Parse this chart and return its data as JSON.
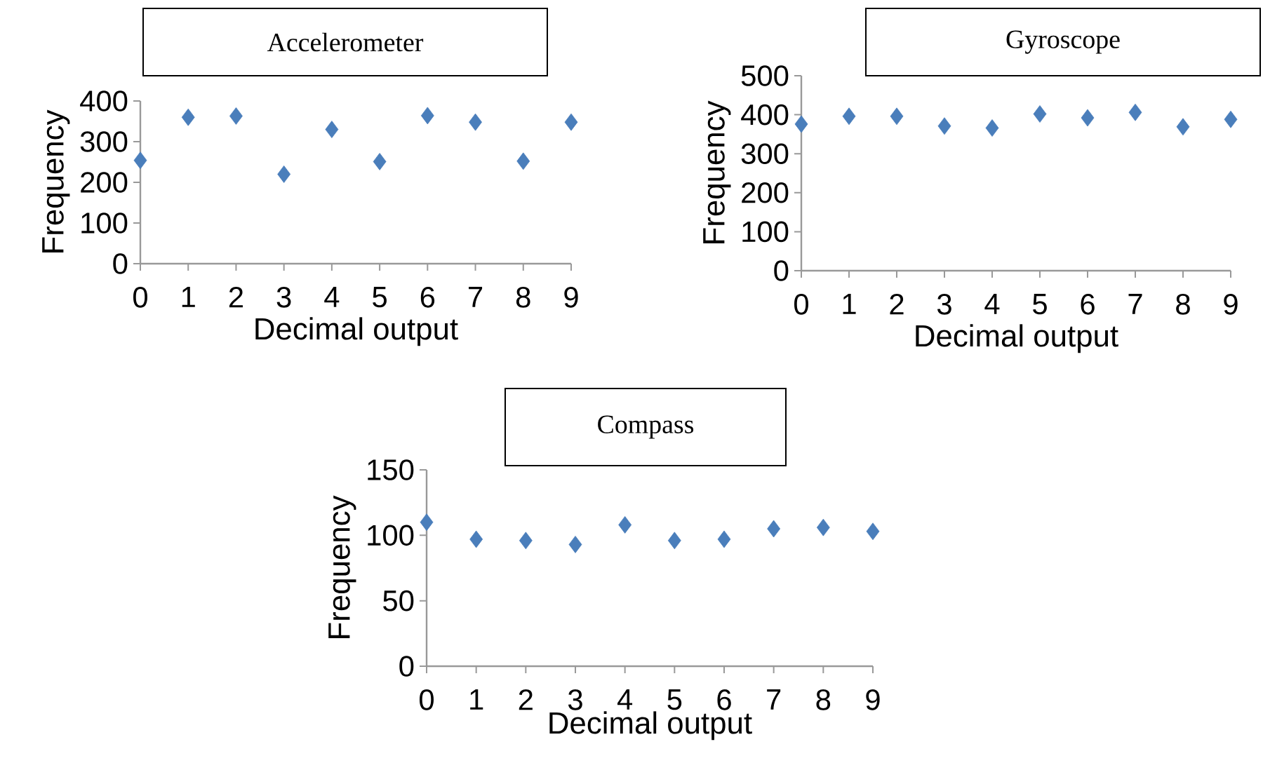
{
  "chart_data": [
    {
      "type": "scatter",
      "title": "Accelerometer",
      "xlabel": "Decimal output",
      "ylabel": "Frequency",
      "x": [
        0,
        1,
        2,
        3,
        4,
        5,
        6,
        7,
        8,
        9
      ],
      "values": [
        254,
        360,
        363,
        220,
        330,
        251,
        364,
        348,
        252,
        348
      ],
      "color": "#4a7ebb",
      "marker": "diamond",
      "xlim": [
        0,
        9
      ],
      "xticks": [
        0,
        1,
        2,
        3,
        4,
        5,
        6,
        7,
        8,
        9
      ],
      "ylim": [
        0,
        400
      ],
      "yticks": [
        0,
        100,
        200,
        300,
        400
      ]
    },
    {
      "type": "scatter",
      "title": "Gyroscope",
      "xlabel": "Decimal output",
      "ylabel": "Frequency",
      "x": [
        0,
        1,
        2,
        3,
        4,
        5,
        6,
        7,
        8,
        9
      ],
      "values": [
        376,
        396,
        396,
        371,
        366,
        402,
        392,
        406,
        369,
        388
      ],
      "color": "#4a7ebb",
      "marker": "diamond",
      "xlim": [
        0,
        9
      ],
      "xticks": [
        0,
        1,
        2,
        3,
        4,
        5,
        6,
        7,
        8,
        9
      ],
      "ylim": [
        0,
        500
      ],
      "yticks": [
        0,
        100,
        200,
        300,
        400,
        500
      ]
    },
    {
      "type": "scatter",
      "title": "Compass",
      "xlabel": "Decimal output",
      "ylabel": "Frequency",
      "x": [
        0,
        1,
        2,
        3,
        4,
        5,
        6,
        7,
        8,
        9
      ],
      "values": [
        110,
        97,
        96,
        93,
        108,
        96,
        97,
        105,
        106,
        103
      ],
      "color": "#4a7ebb",
      "marker": "diamond",
      "xlim": [
        0,
        9
      ],
      "xticks": [
        0,
        1,
        2,
        3,
        4,
        5,
        6,
        7,
        8,
        9
      ],
      "ylim": [
        0,
        150
      ],
      "yticks": [
        0,
        50,
        100,
        150
      ]
    }
  ]
}
